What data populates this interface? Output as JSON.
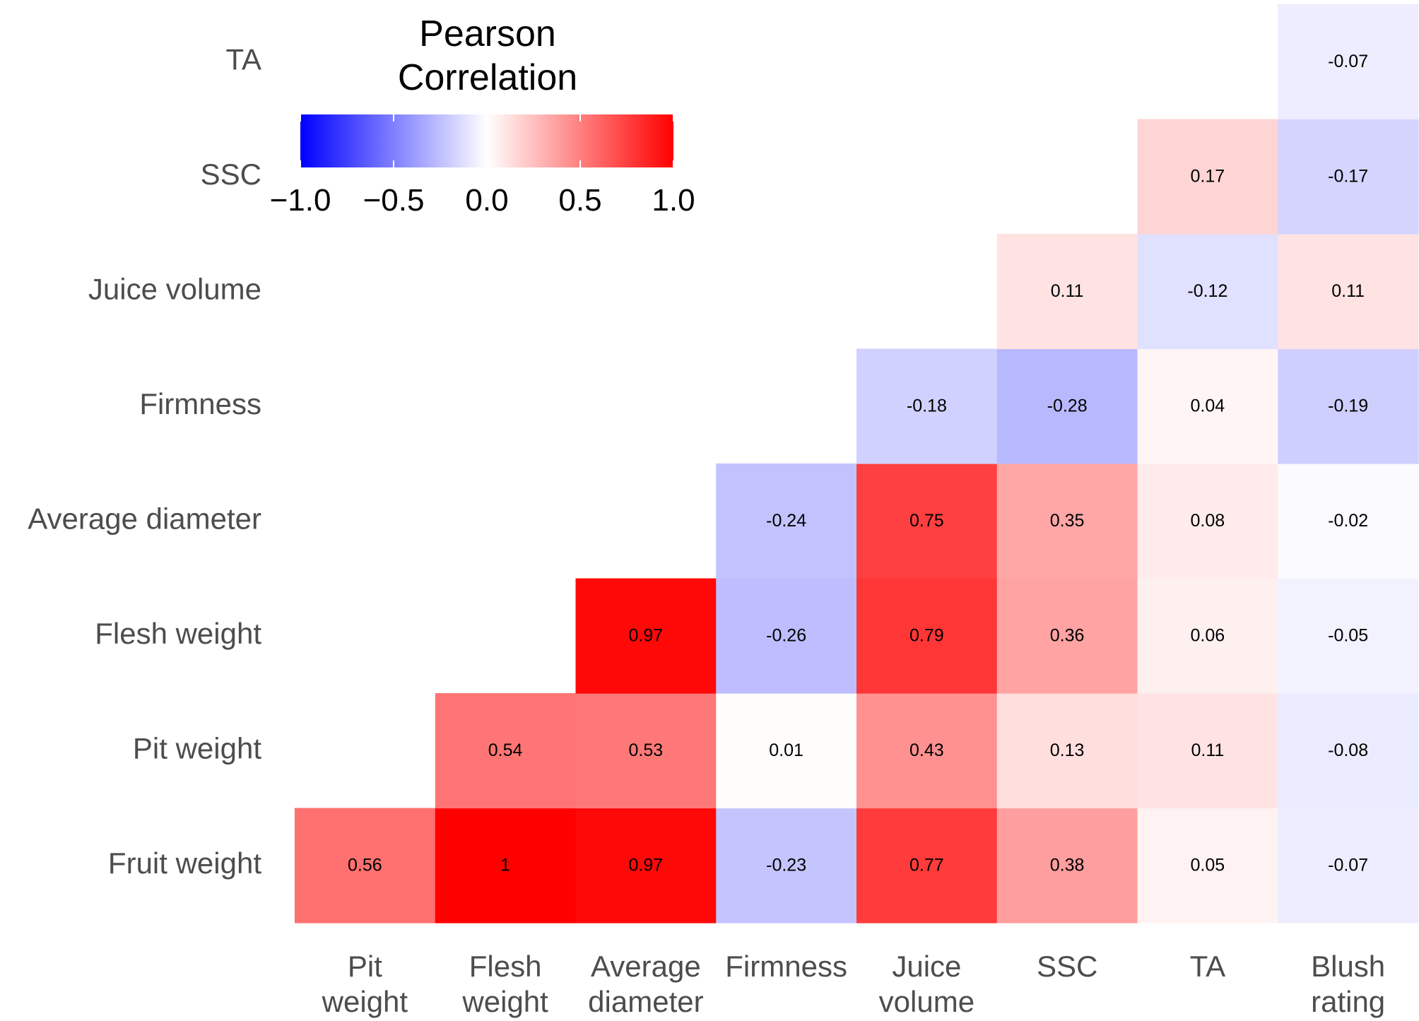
{
  "chart_data": {
    "type": "heatmap",
    "legend": {
      "title_lines": [
        "Pearson",
        "Correlation"
      ],
      "tick_labels": [
        "−1.0",
        "−0.5",
        "0.0",
        "0.5",
        "1.0"
      ],
      "ticks": [
        -1.0,
        -0.5,
        0.0,
        0.5,
        1.0
      ],
      "range": [
        -1.0,
        1.0
      ],
      "colors": {
        "low": "#0000FF",
        "mid": "#FFFFFF",
        "high": "#FF0000"
      },
      "placement": "top-left"
    },
    "columns": [
      {
        "name": "Pit weight",
        "lines": [
          "Pit",
          "weight"
        ]
      },
      {
        "name": "Flesh weight",
        "lines": [
          "Flesh",
          "weight"
        ]
      },
      {
        "name": "Average diameter",
        "lines": [
          "Average",
          "diameter"
        ]
      },
      {
        "name": "Firmness",
        "lines": [
          "Firmness"
        ]
      },
      {
        "name": "Juice volume",
        "lines": [
          "Juice",
          "volume"
        ]
      },
      {
        "name": "SSC",
        "lines": [
          "SSC"
        ]
      },
      {
        "name": "TA",
        "lines": [
          "TA"
        ]
      },
      {
        "name": "Blush rating",
        "lines": [
          "Blush",
          "rating"
        ]
      }
    ],
    "rows": [
      {
        "name": "Fruit weight",
        "values": [
          0.56,
          1,
          0.97,
          -0.23,
          0.77,
          0.38,
          0.05,
          -0.07
        ],
        "labels": [
          "0.56",
          "1",
          "0.97",
          "-0.23",
          "0.77",
          "0.38",
          "0.05",
          "-0.07"
        ]
      },
      {
        "name": "Pit weight",
        "values": [
          null,
          0.54,
          0.53,
          0.01,
          0.43,
          0.13,
          0.11,
          -0.08
        ],
        "labels": [
          null,
          "0.54",
          "0.53",
          "0.01",
          "0.43",
          "0.13",
          "0.11",
          "-0.08"
        ]
      },
      {
        "name": "Flesh weight",
        "values": [
          null,
          null,
          0.97,
          -0.26,
          0.79,
          0.36,
          0.06,
          -0.05
        ],
        "labels": [
          null,
          null,
          "0.97",
          "-0.26",
          "0.79",
          "0.36",
          "0.06",
          "-0.05"
        ]
      },
      {
        "name": "Average diameter",
        "values": [
          null,
          null,
          null,
          -0.24,
          0.75,
          0.35,
          0.08,
          -0.02
        ],
        "labels": [
          null,
          null,
          null,
          "-0.24",
          "0.75",
          "0.35",
          "0.08",
          "-0.02"
        ]
      },
      {
        "name": "Firmness",
        "values": [
          null,
          null,
          null,
          null,
          -0.18,
          -0.28,
          0.04,
          -0.19
        ],
        "labels": [
          null,
          null,
          null,
          null,
          "-0.18",
          "-0.28",
          "0.04",
          "-0.19"
        ]
      },
      {
        "name": "Juice volume",
        "values": [
          null,
          null,
          null,
          null,
          null,
          0.11,
          -0.12,
          0.11
        ],
        "labels": [
          null,
          null,
          null,
          null,
          null,
          "0.11",
          "-0.12",
          "0.11"
        ]
      },
      {
        "name": "SSC",
        "values": [
          null,
          null,
          null,
          null,
          null,
          null,
          0.17,
          -0.17
        ],
        "labels": [
          null,
          null,
          null,
          null,
          null,
          null,
          "0.17",
          "-0.17"
        ]
      },
      {
        "name": "TA",
        "values": [
          null,
          null,
          null,
          null,
          null,
          null,
          null,
          -0.07
        ],
        "labels": [
          null,
          null,
          null,
          null,
          null,
          null,
          null,
          "-0.07"
        ]
      }
    ]
  }
}
